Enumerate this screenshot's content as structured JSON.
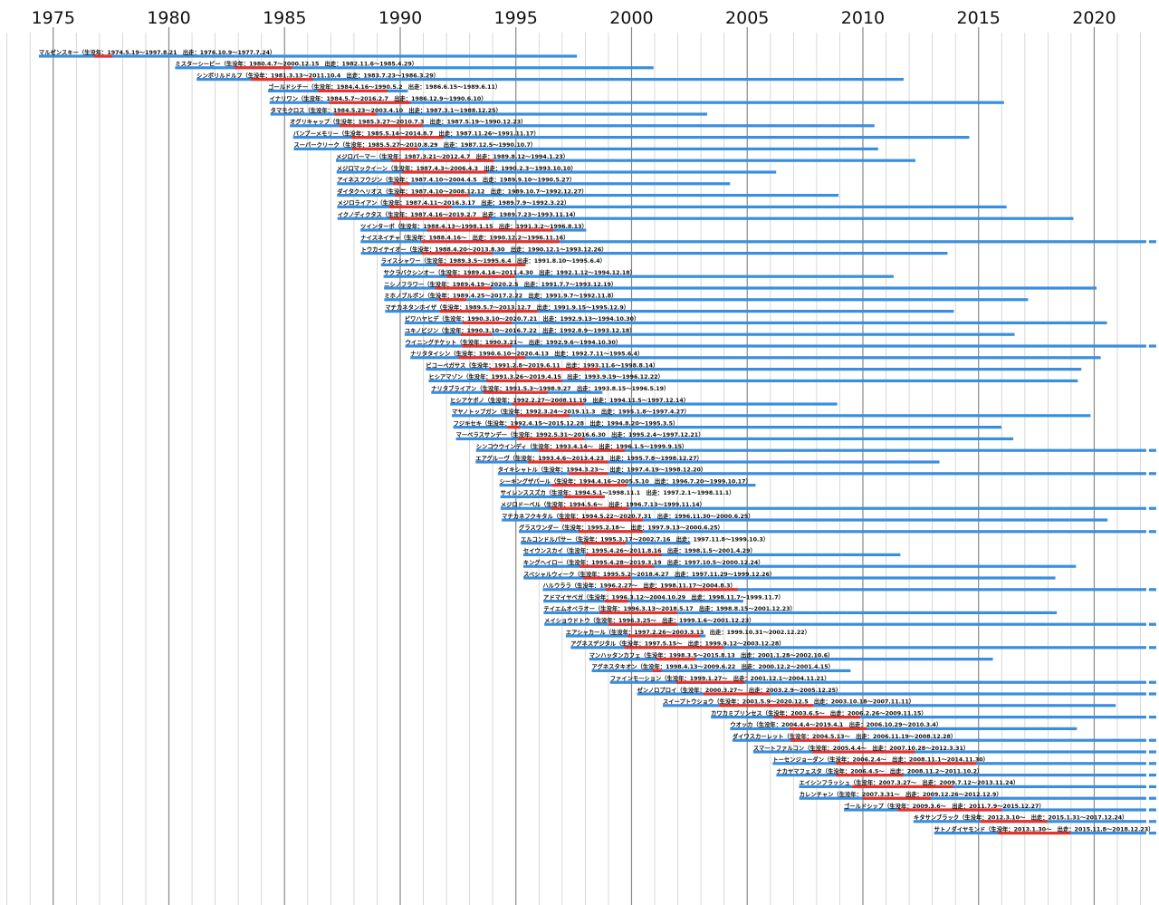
{
  "chart_data": {
    "type": "timeline",
    "title": "",
    "xlabel": "",
    "ylabel": "",
    "xlim": [
      1972.7,
      2022.8
    ],
    "x_ticks": [
      1975,
      1980,
      1985,
      1990,
      1995,
      2000,
      2005,
      2010,
      2015,
      2020
    ],
    "colors": {
      "life": "#3a8ee0",
      "career": "#e8322c",
      "major_grid": "#888888",
      "minor_grid": "#cfcfcf"
    },
    "rows": [
      {
        "label": "マルゼンスキー（生没年：1974.5.19〜1997.8.21　出走：1976.10.9〜1977.7.24）",
        "birth": 1974.38,
        "death": 1997.64,
        "career_start": 1976.77,
        "career_end": 1977.56,
        "alive": false
      },
      {
        "label": "ミスターシービー（生没年：1980.4.7〜2000.12.15　出走：1982.11.6〜1985.4.29）",
        "birth": 1980.27,
        "death": 2000.95,
        "career_start": 1982.85,
        "career_end": 1985.32,
        "alive": false
      },
      {
        "label": "シンボリルドルフ（生没年：1981.3.13〜2011.10.4　出走：1983.7.23〜1986.3.29）",
        "birth": 1981.2,
        "death": 2011.76,
        "career_start": 1983.56,
        "career_end": 1986.24,
        "alive": false
      },
      {
        "label": "ゴールドシチー（生没年：1984.4.16〜1990.5.2　出走：1986.6.15〜1989.6.11）",
        "birth": 1984.29,
        "death": 1990.33,
        "career_start": 1986.45,
        "career_end": 1989.44,
        "alive": false
      },
      {
        "label": "イナリワン（生没年：1984.5.7〜2016.2.7　出走：1986.12.9〜1990.6.10）",
        "birth": 1984.35,
        "death": 2016.1,
        "career_start": 1986.94,
        "career_end": 1990.44,
        "alive": false
      },
      {
        "label": "タマモクロス（生没年：1984.5.23〜2003.4.10　出走：1987.3.1〜1988.12.25）",
        "birth": 1984.39,
        "death": 2003.27,
        "career_start": 1987.16,
        "career_end": 1988.98,
        "alive": false
      },
      {
        "label": "オグリキャップ（生没年：1985.3.27〜2010.7.3　出走：1987.5.19〜1990.12.23）",
        "birth": 1985.23,
        "death": 2010.5,
        "career_start": 1987.38,
        "career_end": 1990.98,
        "alive": false
      },
      {
        "label": "バンブーメモリー（生没年：1985.5.14〜2014.8.7　出走：1987.11.26〜1991.11.17）",
        "birth": 1985.37,
        "death": 2014.6,
        "career_start": 1987.9,
        "career_end": 1991.88,
        "alive": false
      },
      {
        "label": "スーパークリーク（生没年：1985.5.27〜2010.8.29　出走：1987.12.5〜1990.10.7）",
        "birth": 1985.4,
        "death": 2010.66,
        "career_start": 1987.93,
        "career_end": 1990.77,
        "alive": false
      },
      {
        "label": "メジロパーマー（生没年：1987.3.21〜2012.4.7　出走：1989.8.12〜1994.1.23）",
        "birth": 1987.22,
        "death": 2012.27,
        "career_start": 1989.61,
        "career_end": 1994.06,
        "alive": false
      },
      {
        "label": "メジロマックイーン（生没年：1987.4.3〜2006.4.3　出走：1990.2.3〜1993.10.10）",
        "birth": 1987.25,
        "death": 2006.25,
        "career_start": 1990.09,
        "career_end": 1993.77,
        "alive": false
      },
      {
        "label": "アイネスフウジン（生没年：1987.4.10〜2004.4.5　出走：1989.9.10〜1990.5.27）",
        "birth": 1987.27,
        "death": 2004.26,
        "career_start": 1989.69,
        "career_end": 1990.4,
        "alive": false
      },
      {
        "label": "ダイタクヘリオス（生没年：1987.4.10〜2008.12.12　出走：1989.10.7〜1992.12.27）",
        "birth": 1987.27,
        "death": 2008.95,
        "career_start": 1989.77,
        "career_end": 1992.99,
        "alive": false
      },
      {
        "label": "メジロライアン（生没年：1987.4.11〜2016.3.17　出走：1989.7.9〜1992.3.22）",
        "birth": 1987.28,
        "death": 2016.21,
        "career_start": 1989.52,
        "career_end": 1992.22,
        "alive": false
      },
      {
        "label": "イクノディクタス（生没年：1987.4.16〜2019.2.7　出走：1989.7.23〜1993.11.14）",
        "birth": 1987.29,
        "death": 2019.1,
        "career_start": 1989.56,
        "career_end": 1993.87,
        "alive": false
      },
      {
        "label": "ツインターボ（生没年：1988.4.13〜1998.1.15　出走：1991.3.2〜1996.8.13）",
        "birth": 1988.28,
        "death": 1998.04,
        "career_start": 1991.17,
        "career_end": 1996.62,
        "alive": false
      },
      {
        "label": "ナイスネイチャ（生没年：1988.4.16〜　出走：1990.12.2〜1996.11.16）",
        "birth": 1988.29,
        "death": null,
        "career_start": 1990.92,
        "career_end": 1996.88,
        "alive": true
      },
      {
        "label": "トウカイテイオー（生没年：1988.4.20〜2013.8.30　出走：1990.12.1〜1993.12.26）",
        "birth": 1988.3,
        "death": 2013.66,
        "career_start": 1990.92,
        "career_end": 1993.98,
        "alive": false
      },
      {
        "label": "ライスシャワー（生没年：1989.3.5〜1995.6.4　出走：1991.8.10〜1995.6.4）",
        "birth": 1989.17,
        "death": 1995.42,
        "career_start": 1991.61,
        "career_end": 1995.42,
        "alive": false
      },
      {
        "label": "サクラバクシンオー（生没年：1989.4.14〜2011.4.30　出走：1992.1.12〜1994.12.18）",
        "birth": 1989.28,
        "death": 2011.33,
        "career_start": 1992.03,
        "career_end": 1994.96,
        "alive": false
      },
      {
        "label": "ニシノフラワー（生没年：1989.4.19〜2020.2.5　出走：1991.7.7〜1993.12.19）",
        "birth": 1989.3,
        "death": 2020.1,
        "career_start": 1991.51,
        "career_end": 1993.96,
        "alive": false
      },
      {
        "label": "ミホノブルボン（生没年：1989.4.25〜2017.2.22　出走：1991.9.7〜1992.11.8）",
        "birth": 1989.31,
        "death": 2017.14,
        "career_start": 1991.68,
        "career_end": 1992.85,
        "alive": false
      },
      {
        "label": "マチカネタンホイザ（生没年：1989.5.7〜2013.12.7　出走：1991.9.15〜1995.12.9）",
        "birth": 1989.35,
        "death": 2013.93,
        "career_start": 1991.71,
        "career_end": 1995.94,
        "alive": false
      },
      {
        "label": "ビワハヤヒデ（生没年：1990.3.10〜2020.7.21　出走：1992.9.13〜1994.10.30）",
        "birth": 1990.19,
        "death": 2020.55,
        "career_start": 1992.7,
        "career_end": 1994.83,
        "alive": false
      },
      {
        "label": "ユキノビジン（生没年：1990.3.10〜2016.7.22　出走：1992.8.9〜1993.12.18）",
        "birth": 1990.19,
        "death": 2016.56,
        "career_start": 1992.61,
        "career_end": 1993.96,
        "alive": false
      },
      {
        "label": "ウイニングチケット（生没年：1990.3.21〜　出走：1992.9.6〜1994.10.30）",
        "birth": 1990.22,
        "death": null,
        "career_start": 1992.68,
        "career_end": 1994.83,
        "alive": true
      },
      {
        "label": "ナリタタイシン（生没年：1990.6.10〜2020.4.13　出走：1992.7.11〜1995.6.4）",
        "birth": 1990.44,
        "death": 2020.28,
        "career_start": 1992.53,
        "career_end": 1995.42,
        "alive": false
      },
      {
        "label": "ビコーペガサス（生没年：1991.2.8〜2019.6.11　出走：1993.11.6〜1998.8.14）",
        "birth": 1991.11,
        "death": 2019.44,
        "career_start": 1993.85,
        "career_end": 1998.62,
        "alive": false
      },
      {
        "label": "ヒシアマゾン（生没年：1991.3.26〜2019.4.15　出走：1993.9.19〜1996.12.22）",
        "birth": 1991.23,
        "death": 2019.29,
        "career_start": 1993.72,
        "career_end": 1996.98,
        "alive": false
      },
      {
        "label": "ナリタブライアン（生没年：1991.5.3〜1998.9.27　出走：1993.8.15〜1996.5.19）",
        "birth": 1991.34,
        "death": 1998.74,
        "career_start": 1993.62,
        "career_end": 1996.38,
        "alive": false
      },
      {
        "label": "ヒシアケボノ（生没年：1992.2.27〜2008.11.19　出走：1994.11.5〜1997.12.14）",
        "birth": 1992.16,
        "death": 2008.89,
        "career_start": 1994.85,
        "career_end": 1997.95,
        "alive": false
      },
      {
        "label": "マヤノトップガン（生没年：1992.3.24〜2019.11.3　出走：1995.1.8〜1997.4.27）",
        "birth": 1992.23,
        "death": 2019.84,
        "career_start": 1995.02,
        "career_end": 1997.32,
        "alive": false
      },
      {
        "label": "フジキセキ（生没年：1992.4.15〜2015.12.28　出走：1994.8.20〜1995.3.5）",
        "birth": 1992.29,
        "death": 2015.99,
        "career_start": 1994.64,
        "career_end": 1995.17,
        "alive": false
      },
      {
        "label": "マーベラスサンデー（生没年：1992.5.31〜2016.6.30　出走：1995.2.4〜1997.12.21）",
        "birth": 1992.41,
        "death": 2016.5,
        "career_start": 1995.1,
        "career_end": 1997.97,
        "alive": false
      },
      {
        "label": "シンコウウインディ（生没年：1993.4.14〜　出走：1996.1.5〜1999.9.15）",
        "birth": 1993.28,
        "death": null,
        "career_start": 1996.01,
        "career_end": 1999.71,
        "alive": true
      },
      {
        "label": "エアグルーヴ（生没年：1993.4.6〜2013.4.23　出走：1995.7.8〜1998.12.27）",
        "birth": 1993.26,
        "death": 2013.31,
        "career_start": 1995.52,
        "career_end": 1998.99,
        "alive": false
      },
      {
        "label": "タイキシャトル（生没年：1994.3.23〜　出走：1997.4.19〜1998.12.20）",
        "birth": 1994.22,
        "death": null,
        "career_start": 1997.3,
        "career_end": 1998.97,
        "alive": true
      },
      {
        "label": "シーキングザパール（生没年：1994.4.16〜2005.5.10　出走：1996.7.20〜1999.10.17）",
        "birth": 1994.29,
        "death": 2005.36,
        "career_start": 1996.55,
        "career_end": 1999.8,
        "alive": false
      },
      {
        "label": "サイレンススズカ（生没年：1994.5.1〜1998.11.1　出走：1997.2.1〜1998.11.1）",
        "birth": 1994.33,
        "death": 1998.84,
        "career_start": 1997.09,
        "career_end": 1998.84,
        "alive": false
      },
      {
        "label": "メジロドーベル（生没年：1994.5.6〜　出走：1996.7.13〜1999.11.14）",
        "birth": 1994.34,
        "death": null,
        "career_start": 1996.53,
        "career_end": 1999.87,
        "alive": true
      },
      {
        "label": "マチカネフクキタル（生没年：1994.5.22〜2020.7.31　出走：1996.11.30〜2000.6.25）",
        "birth": 1994.39,
        "death": 2020.58,
        "career_start": 1996.92,
        "career_end": 2000.48,
        "alive": false
      },
      {
        "label": "グラスワンダー（生没年：1995.2.18〜　出走：1997.9.13〜2000.6.25）",
        "birth": 1995.13,
        "death": null,
        "career_start": 1997.7,
        "career_end": 2000.48,
        "alive": true
      },
      {
        "label": "エルコンドルパサー（生没年：1995.3.17〜2002.7.16　出走：1997.11.8〜1999.10.3）",
        "birth": 1995.21,
        "death": 2002.54,
        "career_start": 1997.85,
        "career_end": 1999.75,
        "alive": false
      },
      {
        "label": "セイウンスカイ（生没年：1995.4.26〜2011.8.16　出走：1998.1.5〜2001.4.29）",
        "birth": 1995.32,
        "death": 2011.62,
        "career_start": 1998.01,
        "career_end": 2001.32,
        "alive": false
      },
      {
        "label": "キングヘイロー（生没年：1995.4.28〜2019.3.19　出走：1997.10.5〜2000.12.24）",
        "birth": 1995.32,
        "death": 2019.21,
        "career_start": 1997.76,
        "career_end": 2000.98,
        "alive": false
      },
      {
        "label": "スペシャルウィーク（生没年：1995.5.2〜2018.4.27　出走：1997.11.29〜1999.12.26）",
        "birth": 1995.33,
        "death": 2018.32,
        "career_start": 1997.91,
        "career_end": 1999.98,
        "alive": false
      },
      {
        "label": "ハルウララ（生没年：1996.2.27〜　出走：1998.11.17〜2004.8.3）",
        "birth": 1996.16,
        "death": null,
        "career_start": 1998.88,
        "career_end": 2004.59,
        "alive": true
      },
      {
        "label": "アドマイヤベガ（生没年：1996.3.12〜2004.10.29　出走：1998.11.7〜1999.11.7）",
        "birth": 1996.19,
        "death": 2004.83,
        "career_start": 1998.85,
        "career_end": 1999.85,
        "alive": false
      },
      {
        "label": "テイエムオペラオー（生没年：1996.3.13〜2018.5.17　出走：1998.8.15〜2001.12.23）",
        "birth": 1996.2,
        "death": 2018.38,
        "career_start": 1998.62,
        "career_end": 2001.98,
        "alive": false
      },
      {
        "label": "メイショウドトウ（生没年：1996.3.25〜　出走：1999.1.6〜2001.12.23）",
        "birth": 1996.23,
        "death": null,
        "career_start": 1999.01,
        "career_end": 2001.98,
        "alive": true
      },
      {
        "label": "エアシャカール（生没年：1997.2.26〜2003.3.13　出走：1999.10.31〜2002.12.22）",
        "birth": 1997.16,
        "death": 2003.2,
        "career_start": 1999.83,
        "career_end": 2002.97,
        "alive": false
      },
      {
        "label": "アグネスデジタル（生没年：1997.5.15〜　出走：1999.9.12〜2003.12.28）",
        "birth": 1997.37,
        "death": null,
        "career_start": 1999.7,
        "career_end": 2003.99,
        "alive": true
      },
      {
        "label": "マンハッタンカフェ（生没年：1998.3.5〜2015.8.13　出走：2001.1.28〜2002.10.6）",
        "birth": 1998.17,
        "death": 2015.62,
        "career_start": 2001.08,
        "career_end": 2002.77,
        "alive": false
      },
      {
        "label": "アグネスタキオン（生没年：1998.4.13〜2009.6.22　出走：2000.12.2〜2001.4.15）",
        "birth": 1998.28,
        "death": 2009.47,
        "career_start": 2000.92,
        "career_end": 2001.29,
        "alive": false
      },
      {
        "label": "ファインモーション（生没年：1999.1.27〜　出走：2001.12.1〜2004.11.21）",
        "birth": 1999.07,
        "death": null,
        "career_start": 2001.92,
        "career_end": 2004.89,
        "alive": true
      },
      {
        "label": "ゼンノロブロイ（生没年：2000.3.27〜　出走：2003.2.9〜2005.12.25）",
        "birth": 2000.24,
        "death": null,
        "career_start": 2003.11,
        "career_end": 2005.98,
        "alive": true
      },
      {
        "label": "スイープトウショウ（生没年：2001.5.9〜2020.12.5　出走：2003.10.18〜2007.11.11）",
        "birth": 2001.35,
        "death": 2020.93,
        "career_start": 2003.8,
        "career_end": 2007.86,
        "alive": false
      },
      {
        "label": "カワカミプリンセス（生没年：2003.6.5〜　出走：2006.2.26〜2009.11.15）",
        "birth": 2003.43,
        "death": null,
        "career_start": 2006.15,
        "career_end": 2009.87,
        "alive": true
      },
      {
        "label": "ウオッカ（生没年：2004.4.4〜2019.4.1　出走：2006.10.29〜2010.3.4）",
        "birth": 2004.26,
        "death": 2019.25,
        "career_start": 2006.82,
        "career_end": 2010.17,
        "alive": false
      },
      {
        "label": "ダイワスカーレット（生没年：2004.5.13〜　出走：2006.11.19〜2008.12.28）",
        "birth": 2004.36,
        "death": null,
        "career_start": 2006.88,
        "career_end": 2008.99,
        "alive": true
      },
      {
        "label": "スマートファルコン（生没年：2005.4.4〜　出走：2007.10.28〜2012.3.31）",
        "birth": 2005.26,
        "death": null,
        "career_start": 2007.82,
        "career_end": 2012.25,
        "alive": true
      },
      {
        "label": "トーセンジョーダン（生没年：2006.2.4〜　出走：2008.11.1〜2014.11.30）",
        "birth": 2006.1,
        "death": null,
        "career_start": 2008.84,
        "career_end": 2014.91,
        "alive": true
      },
      {
        "label": "ナカヤマフェスタ（生没年：2006.4.5〜　出走：2008.11.2〜2011.10.2）",
        "birth": 2006.26,
        "death": null,
        "career_start": 2008.84,
        "career_end": 2011.75,
        "alive": true
      },
      {
        "label": "エイシンフラッシュ（生没年：2007.3.27〜　出走：2009.7.12〜2013.11.24）",
        "birth": 2007.24,
        "death": null,
        "career_start": 2009.53,
        "career_end": 2013.9,
        "alive": true
      },
      {
        "label": "カレンチャン（生没年：2007.3.31〜　出走：2009.12.26〜2012.12.9）",
        "birth": 2007.25,
        "death": null,
        "career_start": 2009.98,
        "career_end": 2012.94,
        "alive": true
      },
      {
        "label": "ゴールドシップ（生没年：2009.3.6〜　出走：2011.7.9〜2015.12.27）",
        "birth": 2009.18,
        "death": null,
        "career_start": 2011.52,
        "career_end": 2015.99,
        "alive": true
      },
      {
        "label": "キタサンブラック（生没年：2012.3.10〜　出走：2015.1.31〜2017.12.24）",
        "birth": 2012.19,
        "death": null,
        "career_start": 2015.08,
        "career_end": 2017.98,
        "alive": true
      },
      {
        "label": "サトノダイヤモンド（生没年：2013.1.30〜　出走：2015.11.8〜2018.12.23）",
        "birth": 2013.08,
        "death": null,
        "career_start": 2015.85,
        "career_end": 2018.98,
        "alive": true
      }
    ]
  }
}
